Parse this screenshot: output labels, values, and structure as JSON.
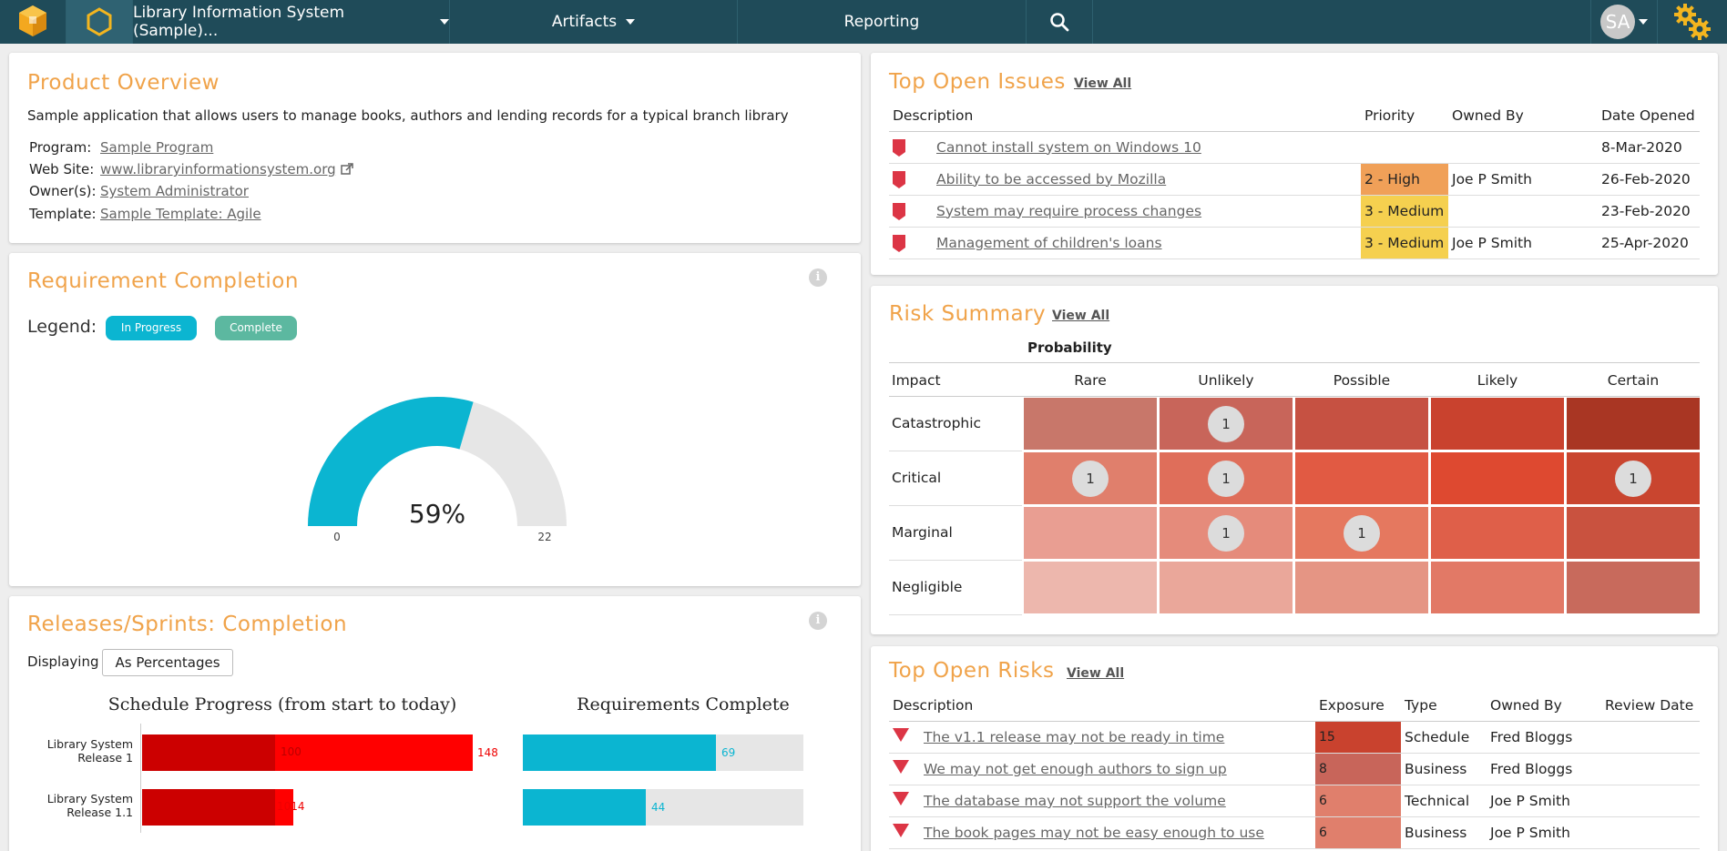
{
  "nav": {
    "project_title": "Library Information System (Sample)...",
    "artifacts_label": "Artifacts",
    "reporting_label": "Reporting",
    "avatar_initials": "SA"
  },
  "product_overview": {
    "title": "Product Overview",
    "description": "Sample application that allows users to manage books, authors and lending records for a typical branch library",
    "program_label": "Program:",
    "program_value": "Sample Program",
    "website_label": "Web Site:",
    "website_value": "www.libraryinformationsystem.org",
    "owner_label": "Owner(s):",
    "owner_value": "System Administrator",
    "template_label": "Template:",
    "template_value": "Sample Template: Agile"
  },
  "requirement_completion": {
    "title": "Requirement Completion",
    "legend_label": "Legend:",
    "legend_in_progress": "In Progress",
    "legend_complete": "Complete",
    "gauge_percent_text": "59%",
    "gauge_min": "0",
    "gauge_max": "22",
    "gauge_fraction": 0.59,
    "color_in_progress": "#0bb5d1",
    "color_complete": "#5cb8a0",
    "color_remaining": "#e6e6e6"
  },
  "releases": {
    "title": "Releases/Sprints: Completion",
    "displaying_label": "Displaying",
    "displaying_value": "As Percentages",
    "schedule_title": "Schedule Progress (from start to today)",
    "requirements_title": "Requirements Complete",
    "rows": [
      {
        "name_line1": "Library System",
        "name_line2": "Release 1",
        "schedule_value": "148",
        "schedule_inner": "100",
        "req_value": "69"
      },
      {
        "name_line1": "Library System",
        "name_line2": "Release 1.1",
        "schedule_value": "1014",
        "schedule_inner": "",
        "req_value": "44"
      }
    ]
  },
  "top_open_issues": {
    "title": "Top Open Issues",
    "view_all": "View All",
    "columns": [
      "Description",
      "Priority",
      "Owned By",
      "Date Opened"
    ],
    "rows": [
      {
        "description": "Cannot install system on Windows 10",
        "priority": "",
        "owner": "",
        "date": "8-Mar-2020"
      },
      {
        "description": "Ability to be accessed by Mozilla",
        "priority": "2 - High",
        "owner": "Joe P Smith",
        "date": "26-Feb-2020"
      },
      {
        "description": "System may require process changes",
        "priority": "3 - Medium",
        "owner": "",
        "date": "23-Feb-2020"
      },
      {
        "description": "Management of children's loans",
        "priority": "3 - Medium",
        "owner": "Joe P Smith",
        "date": "25-Apr-2020"
      }
    ],
    "priority_colors": {
      "2 - High": "#f0a058",
      "3 - Medium": "#f5d04f"
    }
  },
  "risk_summary": {
    "title": "Risk Summary",
    "view_all": "View All",
    "probability_label": "Probability",
    "impact_label": "Impact",
    "probabilities": [
      "Rare",
      "Unlikely",
      "Possible",
      "Likely",
      "Certain"
    ],
    "impacts": [
      "Catastrophic",
      "Critical",
      "Marginal",
      "Negligible"
    ],
    "counts": [
      [
        "",
        "1",
        "",
        "",
        ""
      ],
      [
        "1",
        "1",
        "",
        "",
        "1"
      ],
      [
        "",
        "1",
        "1",
        "",
        ""
      ],
      [
        "",
        "",
        "",
        "",
        ""
      ]
    ],
    "colors": [
      [
        "#c8776a",
        "#c8655a",
        "#c65142",
        "#c9422e",
        "#a93623"
      ],
      [
        "#e07f6c",
        "#df6e5a",
        "#e15a43",
        "#de4930",
        "#c9452f"
      ],
      [
        "#e99e92",
        "#e58b7b",
        "#e5785f",
        "#df5f49",
        "#c9523f"
      ],
      [
        "#edb7ad",
        "#eaa79a",
        "#e59584",
        "#e27966",
        "#c86a5c"
      ]
    ]
  },
  "top_open_risks": {
    "title": "Top Open Risks",
    "view_all": "View All",
    "columns": [
      "Description",
      "Exposure",
      "Type",
      "Owned By",
      "Review Date"
    ],
    "rows": [
      {
        "description": "The v1.1 release may not be ready in time",
        "exposure": "15",
        "type": "Schedule",
        "owner": "Fred Bloggs",
        "review": "",
        "exposure_color": "#c9422e"
      },
      {
        "description": "We may not get enough authors to sign up",
        "exposure": "8",
        "type": "Business",
        "owner": "Fred Bloggs",
        "review": "",
        "exposure_color": "#c8655a"
      },
      {
        "description": "The database may not support the volume",
        "exposure": "6",
        "type": "Technical",
        "owner": "Joe P Smith",
        "review": "",
        "exposure_color": "#e07f6c"
      },
      {
        "description": "The book pages may not be easy enough to use",
        "exposure": "6",
        "type": "Business",
        "owner": "Joe P Smith",
        "review": "",
        "exposure_color": "#e07f6c"
      }
    ]
  }
}
